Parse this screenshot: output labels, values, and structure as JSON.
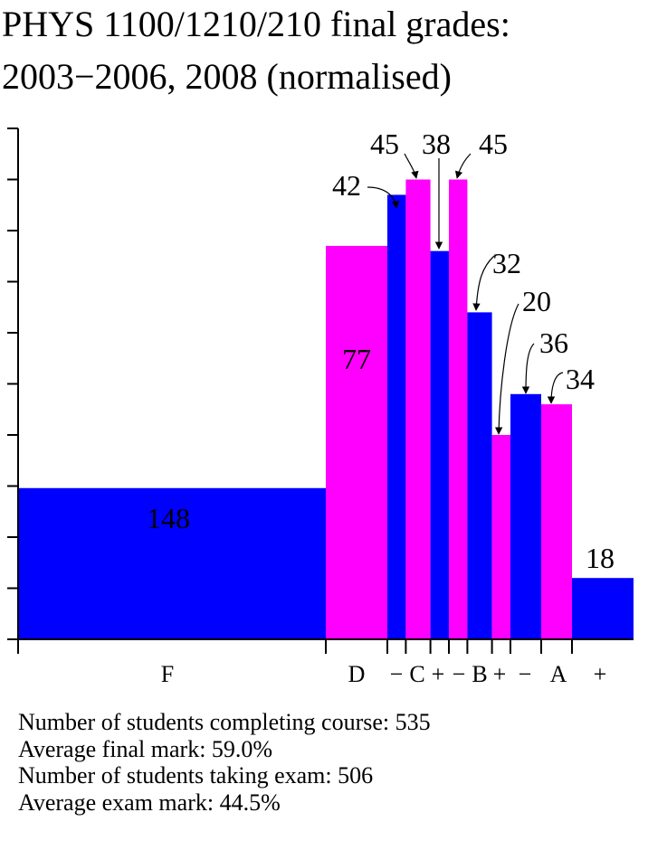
{
  "title": {
    "line1": "PHYS 1100/1210/210 final grades:",
    "line2": "2003−2006, 2008  (normalised)"
  },
  "colors": {
    "blue": "#0000ff",
    "magenta": "#ff00ff"
  },
  "chart_data": {
    "type": "bar",
    "title": "PHYS 1100/1210/210 final grades: 2003−2006, 2008 (normalised)",
    "y_axis": {
      "min": 0,
      "max": 10,
      "tick_count": 11,
      "tick_labels_shown": false
    },
    "x_axis": {
      "grade_scale_from": 0,
      "grade_scale_to": 100
    },
    "bars": [
      {
        "grade": "F",
        "range": [
          0,
          50
        ],
        "count": 148,
        "density": 2.96,
        "color": "blue"
      },
      {
        "grade": "D",
        "range": [
          50,
          60
        ],
        "count": 77,
        "density": 7.7,
        "color": "magenta"
      },
      {
        "grade": "C-",
        "range": [
          60,
          63
        ],
        "count": 42,
        "density": 8.7,
        "color": "blue"
      },
      {
        "grade": "C",
        "range": [
          63,
          67
        ],
        "count": 45,
        "density": 9.0,
        "color": "magenta"
      },
      {
        "grade": "C+",
        "range": [
          67,
          70
        ],
        "count": 38,
        "density": 7.6,
        "color": "blue"
      },
      {
        "grade": "B-",
        "range": [
          70,
          73
        ],
        "count": 45,
        "density": 9.0,
        "color": "magenta"
      },
      {
        "grade": "B",
        "range": [
          73,
          77
        ],
        "count": 32,
        "density": 6.4,
        "color": "blue"
      },
      {
        "grade": "B+",
        "range": [
          77,
          80
        ],
        "count": 20,
        "density": 4.0,
        "color": "magenta"
      },
      {
        "grade": "A-",
        "range": [
          80,
          85
        ],
        "count": 36,
        "density": 4.8,
        "color": "blue"
      },
      {
        "grade": "A",
        "range": [
          85,
          90
        ],
        "count": 34,
        "density": 4.6,
        "color": "magenta"
      },
      {
        "grade": "A+",
        "range": [
          90,
          100
        ],
        "count": 18,
        "density": 1.2,
        "color": "blue"
      }
    ],
    "x_tick_labels": [
      "F",
      "D",
      "−",
      "C",
      "+",
      "−",
      "B",
      "+",
      "−",
      "A",
      "+"
    ],
    "count_labels": [
      "148",
      "77",
      "42",
      "45",
      "38",
      "45",
      "32",
      "20",
      "36",
      "34",
      "18"
    ]
  },
  "stats": {
    "line1": "Number of students completing course: 535",
    "line2": "Average final mark: 59.0%",
    "line3": "Number of students taking exam: 506",
    "line4": "Average exam mark: 44.5%"
  }
}
